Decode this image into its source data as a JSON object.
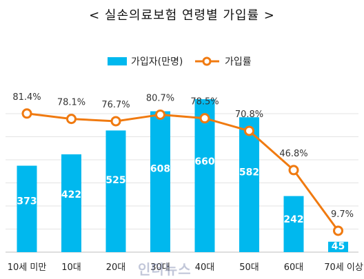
{
  "title": "< 실손의료보험 연령별 가입률 >",
  "watermark": "인더뉴스",
  "chart_data": {
    "type": "bar+line",
    "categories": [
      "10세 미만",
      "10대",
      "20대",
      "30대",
      "40대",
      "50대",
      "60대",
      "70세 이상"
    ],
    "series": [
      {
        "name": "가입자(만명)",
        "type": "bar",
        "values": [
          373,
          422,
          525,
          608,
          660,
          582,
          242,
          45
        ],
        "color": "#00B8EE"
      },
      {
        "name": "가입률",
        "type": "line",
        "values": [
          81.4,
          78.1,
          76.7,
          80.7,
          78.5,
          70.8,
          46.8,
          9.7
        ],
        "color": "#F07A10"
      }
    ],
    "bar_label_values": [
      "373",
      "422",
      "525",
      "608",
      "660",
      "582",
      "242",
      "45"
    ],
    "line_label_values": [
      "81.4%",
      "78.1%",
      "76.7%",
      "80.7%",
      "78.5%",
      "70.8%",
      "46.8%",
      "9.7%"
    ],
    "bar_axis_range": [
      0,
      660
    ],
    "line_axis_range": [
      0,
      100
    ],
    "legend_position": "top",
    "grid": true
  }
}
